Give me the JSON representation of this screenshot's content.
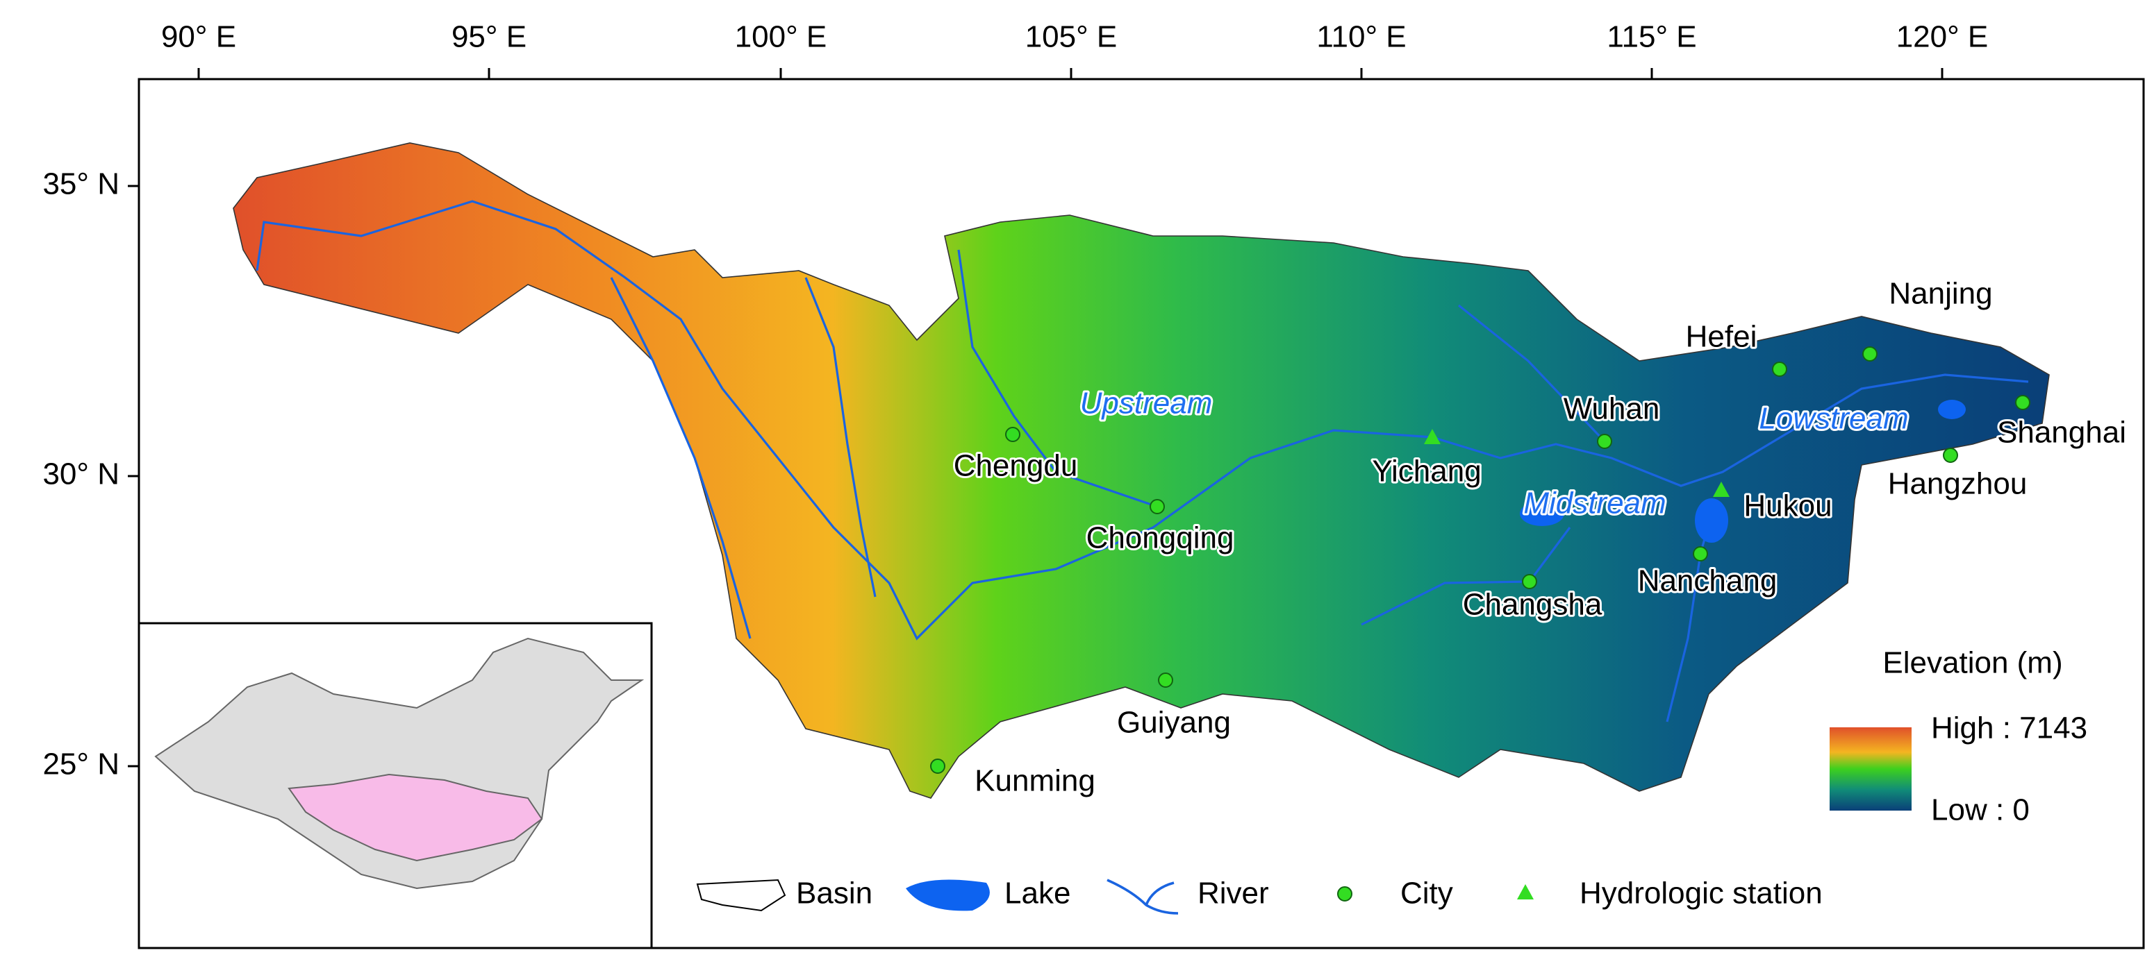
{
  "map": {
    "longitude_labels": [
      "90° E",
      "95° E",
      "100° E",
      "105° E",
      "110° E",
      "115° E",
      "120° E"
    ],
    "latitude_labels": [
      "35° N",
      "30° N",
      "25° N"
    ],
    "cities": [
      "Chengdu",
      "Chongqing",
      "Guiyang",
      "Kunming",
      "Wuhan",
      "Changsha",
      "Nanchang",
      "Hefei",
      "Nanjing",
      "Shanghai",
      "Hangzhou"
    ],
    "stations": [
      "Yichang",
      "Hukou"
    ],
    "regions": [
      "Upstream",
      "Midstream",
      "Lowstream"
    ],
    "elevation_legend": {
      "title": "Elevation (m)",
      "high": "High : 7143",
      "low": "Low : 0"
    },
    "legend": [
      "Basin",
      "Lake",
      "River",
      "City",
      "Hydrologic station"
    ]
  }
}
